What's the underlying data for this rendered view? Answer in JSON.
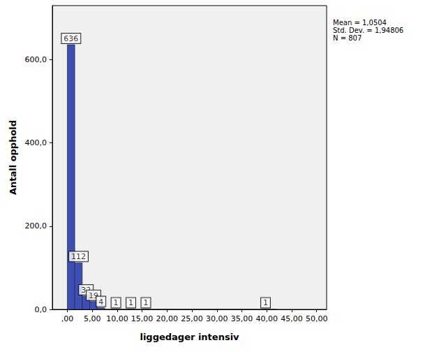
{
  "chart_data": {
    "type": "histogram",
    "x_label": "liggedager intensiv",
    "y_label": "Antall opphold",
    "bins": [
      0,
      1.5,
      3,
      4.5,
      6,
      7.5,
      9,
      10.5,
      12,
      13.5,
      15,
      16.5,
      18,
      19.5,
      21,
      22.5,
      24,
      25.5,
      27,
      28.5,
      30,
      31.5,
      33,
      34.5,
      36,
      37.5,
      39,
      40.5,
      42
    ],
    "counts": [
      636,
      112,
      32,
      19,
      4,
      0,
      1,
      0,
      1,
      0,
      1,
      0,
      0,
      0,
      0,
      0,
      0,
      0,
      0,
      0,
      0,
      0,
      0,
      0,
      0,
      0,
      1,
      0
    ],
    "color": "#3d4fb5",
    "xlim": [
      -3,
      52
    ],
    "xticks": [
      {
        "value": 0,
        "label": ",00"
      },
      {
        "value": 5,
        "label": "5,00"
      },
      {
        "value": 10,
        "label": "10,00"
      },
      {
        "value": 15,
        "label": "15,00"
      },
      {
        "value": 20,
        "label": "20,00"
      },
      {
        "value": 25,
        "label": "25,00"
      },
      {
        "value": 30,
        "label": "30,00"
      },
      {
        "value": 35,
        "label": "35,00"
      },
      {
        "value": 40,
        "label": "40,00"
      },
      {
        "value": 45,
        "label": "45,00"
      },
      {
        "value": 50,
        "label": "50,00"
      }
    ],
    "ylim": [
      0,
      730
    ],
    "yticks": [
      {
        "value": 0,
        "label": "0,0"
      },
      {
        "value": 200,
        "label": "200,0"
      },
      {
        "value": 400,
        "label": "400,0"
      },
      {
        "value": 600,
        "label": "600,0"
      }
    ],
    "data_labels": true,
    "annotations": [
      "Mean = 1,0504",
      "Std. Dev. = 1,94806",
      "N = 807"
    ]
  }
}
